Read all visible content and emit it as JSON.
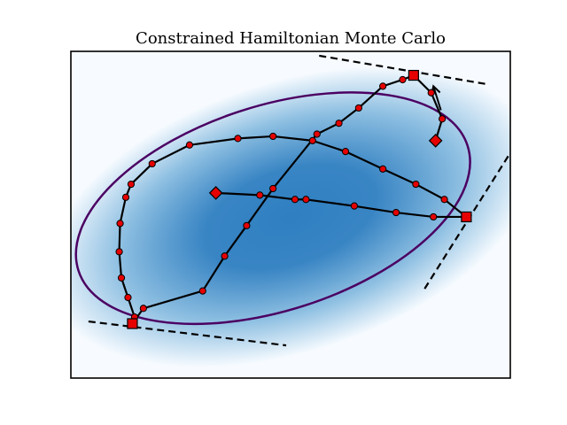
{
  "chart_data": {
    "type": "scatter",
    "title": "Constrained Hamiltonian Monte Carlo",
    "xlabel": "",
    "ylabel": "",
    "axes_ticks": "none",
    "grid": false,
    "legend": "none",
    "xlim": [
      0,
      10
    ],
    "ylim": [
      0,
      7.5
    ],
    "colors": {
      "density_high": "#2f7fc1",
      "density_low": "#f7fbff",
      "constraint": "#4b0062",
      "trajectory": "#000000",
      "marker_fill": "#e60000",
      "tangent": "#000000"
    },
    "constraint_ellipse": {
      "center": [
        4.6,
        3.9
      ],
      "semi_axes": [
        4.65,
        2.35
      ],
      "rotation_deg": 17.8
    },
    "density": {
      "center": [
        5.0,
        3.7
      ],
      "semi_axes": [
        5.8,
        3.1
      ],
      "rotation_deg": 18
    },
    "trajectory": [
      {
        "x": 3.3,
        "y": 4.25,
        "marker": "diamond"
      },
      {
        "x": 4.3,
        "y": 4.2
      },
      {
        "x": 5.1,
        "y": 4.1
      },
      {
        "x": 5.35,
        "y": 4.1
      },
      {
        "x": 6.45,
        "y": 3.95
      },
      {
        "x": 7.4,
        "y": 3.8
      },
      {
        "x": 8.25,
        "y": 3.7
      },
      {
        "x": 9.0,
        "y": 3.7,
        "marker": "square"
      },
      {
        "x": 8.5,
        "y": 4.1
      },
      {
        "x": 7.85,
        "y": 4.45
      },
      {
        "x": 7.1,
        "y": 4.8
      },
      {
        "x": 6.25,
        "y": 5.2
      },
      {
        "x": 5.5,
        "y": 5.45
      },
      {
        "x": 4.6,
        "y": 5.55
      },
      {
        "x": 3.8,
        "y": 5.5
      },
      {
        "x": 2.7,
        "y": 5.35
      },
      {
        "x": 1.85,
        "y": 4.92
      },
      {
        "x": 1.37,
        "y": 4.45
      },
      {
        "x": 1.25,
        "y": 4.15
      },
      {
        "x": 1.12,
        "y": 3.55
      },
      {
        "x": 1.1,
        "y": 2.9
      },
      {
        "x": 1.15,
        "y": 2.3
      },
      {
        "x": 1.3,
        "y": 1.85
      },
      {
        "x": 1.45,
        "y": 1.4
      },
      {
        "x": 1.4,
        "y": 1.25,
        "marker": "square"
      },
      {
        "x": 1.65,
        "y": 1.6
      },
      {
        "x": 3.0,
        "y": 2.0
      },
      {
        "x": 3.5,
        "y": 2.8
      },
      {
        "x": 4.0,
        "y": 3.5
      },
      {
        "x": 4.6,
        "y": 4.35
      },
      {
        "x": 5.6,
        "y": 5.6
      },
      {
        "x": 6.1,
        "y": 5.85
      },
      {
        "x": 6.55,
        "y": 6.2
      },
      {
        "x": 7.1,
        "y": 6.7
      },
      {
        "x": 7.55,
        "y": 6.85
      },
      {
        "x": 7.8,
        "y": 6.95,
        "marker": "square"
      },
      {
        "x": 8.2,
        "y": 6.55
      },
      {
        "x": 8.45,
        "y": 5.95
      },
      {
        "x": 8.3,
        "y": 5.45,
        "marker": "diamond"
      }
    ],
    "arrow": {
      "from": [
        8.42,
        6.15
      ],
      "to": [
        8.25,
        6.7
      ]
    },
    "tangent_lines": [
      {
        "from": [
          5.65,
          7.4
        ],
        "to": [
          9.45,
          6.75
        ]
      },
      {
        "from": [
          8.05,
          2.05
        ],
        "to": [
          10.3,
          5.65
        ]
      },
      {
        "from": [
          0.4,
          1.3
        ],
        "to": [
          4.9,
          0.75
        ]
      }
    ]
  }
}
